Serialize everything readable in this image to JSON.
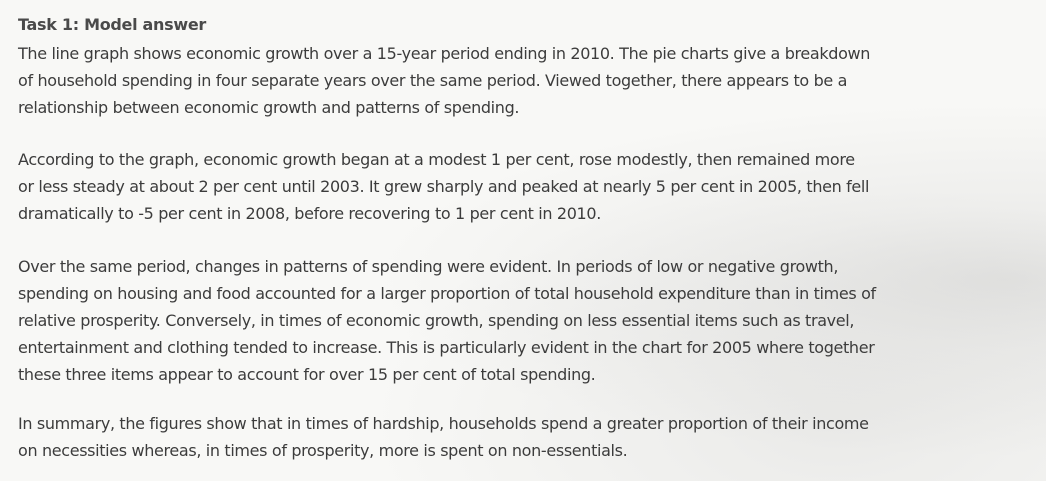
{
  "document": {
    "heading": "Task 1: Model answer",
    "paragraphs": [
      {
        "lines": [
          "The line graph shows economic growth over a 15-year period ending in 2010. The pie charts give a breakdown",
          "of household spending in four separate years over the same period. Viewed together, there appears to be a",
          "relationship between economic growth and patterns of spending."
        ]
      },
      {
        "lines": [
          "According to the graph, economic growth began at a modest 1 per cent, rose modestly, then remained more",
          "or less steady at about 2 per cent until 2003. It grew sharply and peaked at nearly 5 per cent in 2005, then fell",
          "dramatically to -5 per cent in 2008, before recovering to 1 per cent in 2010."
        ]
      },
      {
        "lines": [
          "Over the same period, changes in patterns of spending were evident. In periods of low or negative growth,",
          "spending on housing and food accounted for a larger proportion of total household expenditure than in times of",
          "relative prosperity. Conversely, in times of economic growth, spending on less essential items such as travel,",
          "entertainment and clothing tended to increase. This is particularly evident in the chart for 2005 where together",
          "these three items appear to account for over 15 per cent of total spending."
        ]
      },
      {
        "lines": [
          "In summary, the figures show that in times of hardship, households spend a greater proportion of their income",
          "on necessities whereas, in times of prosperity, more is spent on non-essentials."
        ]
      }
    ]
  }
}
